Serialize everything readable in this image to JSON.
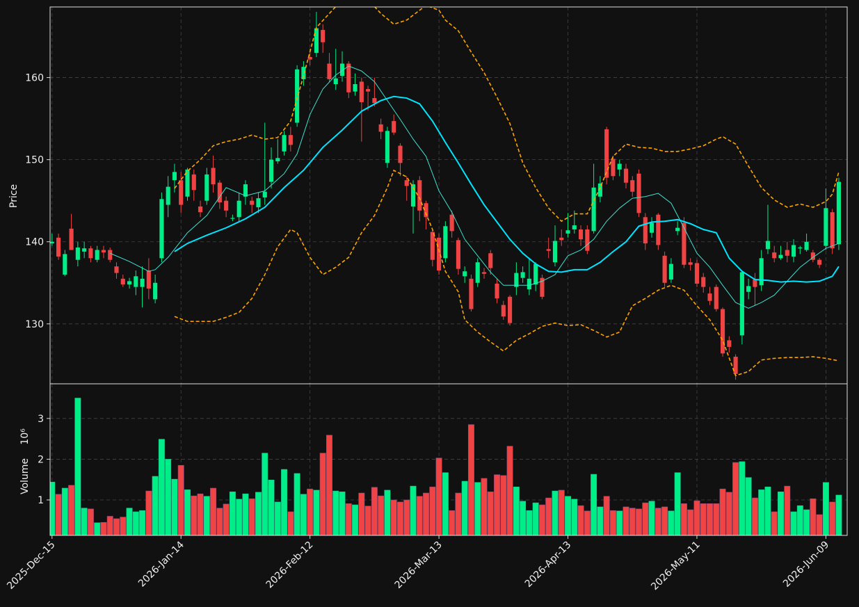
{
  "chart_data": {
    "type": "candlestick",
    "ylabel": "Price",
    "volume_label": "Volume",
    "volume_scale_label": "10⁶",
    "up_color": "#00ee88",
    "down_color": "#f04444",
    "grid": true,
    "xlim": [
      -0.3,
      123.3
    ],
    "ylim": [
      122.7,
      168.6
    ],
    "yticks": [
      130,
      140,
      150,
      160
    ],
    "volume_ylim": [
      0.13,
      3.85
    ],
    "volume_yticks": [
      1,
      2,
      3
    ],
    "categories": [
      "2025-Dec-15",
      null,
      null,
      null,
      null,
      null,
      null,
      null,
      null,
      null,
      null,
      null,
      null,
      null,
      null,
      null,
      null,
      null,
      null,
      null,
      "2026-Jan-14",
      null,
      null,
      null,
      null,
      null,
      null,
      null,
      null,
      null,
      null,
      null,
      null,
      null,
      null,
      null,
      null,
      null,
      null,
      null,
      "2026-Feb-12",
      null,
      null,
      null,
      null,
      null,
      null,
      null,
      null,
      null,
      null,
      null,
      null,
      null,
      null,
      null,
      null,
      null,
      null,
      null,
      "2026-Mar-13",
      null,
      null,
      null,
      null,
      null,
      null,
      null,
      null,
      null,
      null,
      null,
      null,
      null,
      null,
      null,
      null,
      null,
      null,
      null,
      "2026-Apr-13",
      null,
      null,
      null,
      null,
      null,
      null,
      null,
      null,
      null,
      null,
      null,
      null,
      null,
      null,
      null,
      null,
      null,
      null,
      null,
      "2026-May-11",
      null,
      null,
      null,
      null,
      null,
      null,
      null,
      null,
      null,
      null,
      null,
      null,
      null,
      null,
      null,
      null,
      null,
      null,
      null,
      "2026-Jun-09",
      null,
      null
    ],
    "open": [
      139.8,
      140.5,
      136,
      141.6,
      137.8,
      138.8,
      139.2,
      137.8,
      139,
      139,
      137,
      135.5,
      134.8,
      134.5,
      134.5,
      136.5,
      133,
      138,
      144.5,
      147.5,
      147.5,
      145.5,
      148.2,
      144.3,
      145,
      149,
      147.2,
      145,
      142.8,
      143,
      145.5,
      145,
      144.2,
      145.4,
      147.3,
      149.8,
      151,
      153,
      154.5,
      159.8,
      162.5,
      163,
      165.8,
      161.7,
      159.2,
      160.2,
      161.7,
      158.3,
      159.5,
      158.6,
      157.5,
      154.3,
      149.6,
      154.7,
      151.7,
      147.5,
      144.3,
      147.5,
      144.7,
      141.2,
      140.5,
      138,
      143.3,
      140.2,
      135.8,
      135.5,
      135,
      136.3,
      138.6,
      134.9,
      132.3,
      133.3,
      134.5,
      135.6,
      134.2,
      134.8,
      135.6,
      139.1,
      137.5,
      140.5,
      141,
      141.5,
      141.5,
      141.5,
      141.3,
      145.5,
      153.7,
      150.1,
      148.8,
      148.9,
      147.5,
      148.3,
      143,
      141.1,
      143.3,
      138.3,
      135.4,
      141.3,
      142.3,
      137.5,
      137.4,
      135.7,
      133.7,
      134.5,
      131.8,
      128,
      126,
      128.6,
      133.9,
      135.4,
      134.7,
      139.1,
      138.7,
      138,
      139,
      138.2,
      139.2,
      139,
      138.7,
      137.8,
      139.5,
      143.6,
      139.7
    ],
    "high": [
      141,
      141,
      139,
      143.4,
      140,
      140,
      139.5,
      139.5,
      139.5,
      139.3,
      137.5,
      136,
      135.6,
      136.5,
      137,
      138,
      136,
      146,
      148,
      149.5,
      148.5,
      149,
      148.8,
      145,
      149,
      150.5,
      147.5,
      145.5,
      143.3,
      146,
      147.5,
      145.5,
      146,
      154.5,
      151.5,
      152.5,
      153.5,
      154,
      161.5,
      162,
      163.5,
      168,
      166.5,
      163,
      163.5,
      163.2,
      162,
      160.5,
      160,
      159,
      160,
      155,
      154,
      155.5,
      152,
      148,
      147.5,
      148,
      145,
      141.5,
      141,
      142.5,
      143.8,
      140.5,
      137,
      136,
      138,
      136.8,
      139,
      135.5,
      132.8,
      133.5,
      137.5,
      137,
      138,
      137.5,
      136,
      140.5,
      142,
      141.5,
      143.5,
      143.8,
      142,
      142,
      149.5,
      148,
      154,
      150.5,
      150,
      149.5,
      148,
      148.8,
      143.5,
      143,
      143.5,
      138.8,
      138,
      142.5,
      143,
      138,
      137.8,
      136.2,
      134.5,
      134.8,
      132,
      128.5,
      126.3,
      136.5,
      135.5,
      136.2,
      139,
      144.5,
      139.5,
      139.5,
      140,
      140.3,
      139.5,
      141,
      139,
      138,
      146.5,
      144,
      147.8
    ],
    "low": [
      139.5,
      137.8,
      135.8,
      139,
      137,
      138,
      137.5,
      137.5,
      138,
      137.5,
      135.5,
      134.5,
      134.3,
      133.5,
      132,
      133,
      132.5,
      137.5,
      143,
      146,
      143.5,
      145,
      145,
      143,
      144.5,
      146,
      144,
      143,
      142.5,
      142.5,
      144.5,
      143.5,
      143.5,
      144.5,
      146.5,
      149.5,
      150.5,
      151,
      154,
      159,
      161.5,
      162.5,
      163,
      159.5,
      158.5,
      159.5,
      157.5,
      157.8,
      152.2,
      156,
      156.5,
      152.5,
      149,
      153,
      148,
      145,
      141,
      142.5,
      141.5,
      137,
      136,
      137.5,
      140.5,
      136,
      135,
      131.5,
      134.5,
      135.5,
      136,
      132.5,
      130.5,
      129.8,
      133.5,
      135,
      133.5,
      134,
      133,
      138,
      137,
      139.5,
      140.5,
      141,
      139.5,
      138.5,
      141,
      144.8,
      147,
      147.5,
      148,
      146.5,
      145.5,
      143,
      139,
      140.5,
      139,
      134.5,
      135,
      140.8,
      136.8,
      136.5,
      134.5,
      133.8,
      132.3,
      131.5,
      126,
      126.5,
      123.2,
      127.5,
      133,
      132.2,
      134,
      138.5,
      137.5,
      137.8,
      137.5,
      137.5,
      138.5,
      138.8,
      137.5,
      136.8,
      139,
      138.5,
      139
    ],
    "close": [
      140,
      138.2,
      138.5,
      139,
      139.3,
      139.2,
      138,
      139,
      138.7,
      137.8,
      136.2,
      134.8,
      135.2,
      135.8,
      135.5,
      134.3,
      135,
      145.2,
      146.7,
      148.5,
      144.5,
      148.8,
      146.3,
      143.6,
      148.2,
      147,
      144.8,
      143.8,
      142.9,
      145,
      147,
      144.5,
      145.3,
      146.1,
      150,
      150.2,
      153,
      151.8,
      161,
      161.3,
      162.2,
      166,
      164.3,
      159.8,
      159.9,
      161.7,
      158.2,
      159.2,
      157,
      158.3,
      156.9,
      153.4,
      153.5,
      153.3,
      149.6,
      146.8,
      147,
      143.8,
      143,
      137.8,
      136.5,
      141.9,
      141.3,
      136.7,
      136.4,
      131.8,
      137.5,
      136.1,
      136.8,
      133.1,
      130.9,
      130.1,
      136.2,
      136.3,
      135.5,
      137.3,
      133.3,
      138.9,
      140.1,
      140.2,
      141.4,
      142,
      140.3,
      138.9,
      146.6,
      147.1,
      147.8,
      148,
      149.5,
      147.2,
      146.1,
      143.5,
      139.8,
      142.3,
      139.6,
      135,
      137.3,
      141.7,
      137.2,
      137.2,
      134.9,
      134.5,
      132.8,
      131.8,
      126.4,
      127.2,
      123.9,
      136.3,
      134.6,
      134.5,
      138,
      140.1,
      138,
      138.4,
      138.3,
      139.6,
      139.3,
      140,
      137.8,
      137.2,
      144.1,
      139.2,
      147.3
    ],
    "volume": [
      1.44,
      1.14,
      1.29,
      1.36,
      3.5,
      0.8,
      0.78,
      0.44,
      0.45,
      0.6,
      0.54,
      0.58,
      0.8,
      0.71,
      0.74,
      1.22,
      1.58,
      2.49,
      2.0,
      1.51,
      1.85,
      1.25,
      1.1,
      1.15,
      1.09,
      1.29,
      0.8,
      0.9,
      1.2,
      1.02,
      1.15,
      1.03,
      1.19,
      2.15,
      1.49,
      0.95,
      1.75,
      0.71,
      1.65,
      1.14,
      1.27,
      1.24,
      2.15,
      2.59,
      1.22,
      1.2,
      0.91,
      0.88,
      1.17,
      0.85,
      1.31,
      1.1,
      1.24,
      1.0,
      0.95,
      1.0,
      1.34,
      1.09,
      1.17,
      1.32,
      2.03,
      1.67,
      0.74,
      1.17,
      1.46,
      2.85,
      1.43,
      1.53,
      1.2,
      1.62,
      1.6,
      2.32,
      1.32,
      0.97,
      0.74,
      0.93,
      0.88,
      1.05,
      1.22,
      1.24,
      1.09,
      1.02,
      0.86,
      0.73,
      1.63,
      0.83,
      1.09,
      0.74,
      0.73,
      0.83,
      0.8,
      0.78,
      0.93,
      0.97,
      0.8,
      0.83,
      0.73,
      1.67,
      0.91,
      0.76,
      0.98,
      0.91,
      0.91,
      0.91,
      1.27,
      1.19,
      1.92,
      1.94,
      1.55,
      1.05,
      1.25,
      1.32,
      0.71,
      1.2,
      1.34,
      0.71,
      0.86,
      0.76,
      1.03,
      0.64,
      1.43,
      0.95,
      1.12
    ],
    "lines": [
      {
        "color": "#40e0d0",
        "width": 1,
        "dash": false,
        "x": [
          9,
          12,
          15,
          16,
          18,
          21,
          24,
          27,
          30,
          33,
          36,
          38,
          40,
          42,
          44,
          46,
          48,
          50,
          52,
          54,
          56,
          58,
          60,
          62,
          64,
          66,
          68,
          70,
          72,
          74,
          76,
          78,
          80,
          82,
          84,
          86,
          88,
          90,
          92,
          94,
          96,
          98,
          100,
          102,
          104,
          106,
          108,
          110,
          112,
          114,
          116,
          118,
          120,
          122
        ],
        "values": [
          138.6,
          137.6,
          136.4,
          136.6,
          138.1,
          141.1,
          143.2,
          146.6,
          145.6,
          146.2,
          148.3,
          150.7,
          155.5,
          158.6,
          160.3,
          161.4,
          160.8,
          159.5,
          157.2,
          154.9,
          152.5,
          150.4,
          146.2,
          143.6,
          140.3,
          138.3,
          136.3,
          134.7,
          134.7,
          134.7,
          135.2,
          136.0,
          138.3,
          139.0,
          140.3,
          142.5,
          144.1,
          145.3,
          145.5,
          145.9,
          144.7,
          141.7,
          138.6,
          136.9,
          134.7,
          132.6,
          131.9,
          132.6,
          133.5,
          135.2,
          136.9,
          138.1,
          139.2,
          139.8
        ]
      },
      {
        "color": "#00e5ff",
        "width": 2,
        "dash": false,
        "x": [
          19,
          21,
          24,
          27,
          30,
          33,
          36,
          39,
          42,
          45,
          48,
          51,
          53,
          55,
          57,
          59,
          61,
          63,
          65,
          67,
          69,
          71,
          73,
          75,
          77,
          79,
          81,
          83,
          85,
          87,
          89,
          91,
          93,
          95,
          97,
          99,
          101,
          103,
          105,
          107,
          109,
          111,
          113,
          115,
          117,
          119,
          121,
          122
        ],
        "values": [
          138.8,
          139.8,
          140.8,
          141.7,
          142.8,
          144.2,
          146.6,
          148.7,
          151.5,
          153.6,
          155.9,
          157.2,
          157.7,
          157.5,
          156.8,
          154.7,
          152.1,
          149.6,
          147.0,
          144.5,
          142.4,
          140.3,
          138.6,
          137.3,
          136.4,
          136.3,
          136.6,
          136.6,
          137.5,
          138.8,
          140.0,
          141.9,
          142.4,
          142.5,
          142.7,
          142.2,
          141.5,
          141.1,
          138.0,
          136.4,
          135.4,
          135.3,
          135.1,
          135.2,
          135.1,
          135.2,
          135.8,
          137.0
        ]
      },
      {
        "color": "#ffa500",
        "width": 1.6,
        "dash": true,
        "x": [
          19,
          21,
          23,
          25,
          27,
          29,
          31,
          33,
          35,
          37,
          39,
          41,
          43,
          45,
          47,
          49,
          51,
          53,
          55,
          57,
          58,
          60,
          61,
          63,
          65,
          67,
          69,
          71,
          73,
          75,
          77,
          79,
          81,
          83,
          85,
          87,
          89,
          91,
          93,
          95,
          97,
          99,
          101,
          103,
          104,
          106,
          108,
          110,
          112,
          114,
          116,
          118,
          120,
          121,
          122
        ],
        "values": [
          146.5,
          148.6,
          150.0,
          151.7,
          152.2,
          152.5,
          153.0,
          152.5,
          152.7,
          154.7,
          160.2,
          166.1,
          167.8,
          169.5,
          170.0,
          169.5,
          167.8,
          166.5,
          167.0,
          168.2,
          168.8,
          168.2,
          167.0,
          165.7,
          163.1,
          160.6,
          157.6,
          154.4,
          149.6,
          146.6,
          144.1,
          142.5,
          143.4,
          143.4,
          146.6,
          150.4,
          151.9,
          151.5,
          151.4,
          151.0,
          151.0,
          151.3,
          151.7,
          152.5,
          152.8,
          151.9,
          149.2,
          146.6,
          145.1,
          144.2,
          144.6,
          144.2,
          144.9,
          145.8,
          148.5
        ]
      },
      {
        "color": "#ffa500",
        "width": 1.6,
        "dash": true,
        "x": [
          19,
          21,
          23,
          25,
          27,
          29,
          31,
          33,
          35,
          37,
          38,
          40,
          42,
          44,
          46,
          48,
          50,
          52,
          53,
          55,
          57,
          59,
          61,
          63,
          64,
          66,
          68,
          70,
          72,
          74,
          76,
          78,
          80,
          82,
          84,
          86,
          88,
          90,
          92,
          94,
          96,
          98,
          100,
          102,
          104,
          106,
          108,
          110,
          112,
          114,
          116,
          118,
          120,
          122
        ],
        "values": [
          130.9,
          130.3,
          130.3,
          130.3,
          130.8,
          131.4,
          133.1,
          136.0,
          139.4,
          141.5,
          141.1,
          138.1,
          136.0,
          136.9,
          138.1,
          141.1,
          143.2,
          146.6,
          148.7,
          147.9,
          145.3,
          141.5,
          136.4,
          133.9,
          130.5,
          129.0,
          127.8,
          126.7,
          128.0,
          128.8,
          129.7,
          130.1,
          129.8,
          129.9,
          129.2,
          128.4,
          129.0,
          132.2,
          133.1,
          134.1,
          134.7,
          134.1,
          132.2,
          130.5,
          128.0,
          123.7,
          124.2,
          125.6,
          125.8,
          125.9,
          125.9,
          126.0,
          125.8,
          125.5
        ]
      }
    ]
  }
}
